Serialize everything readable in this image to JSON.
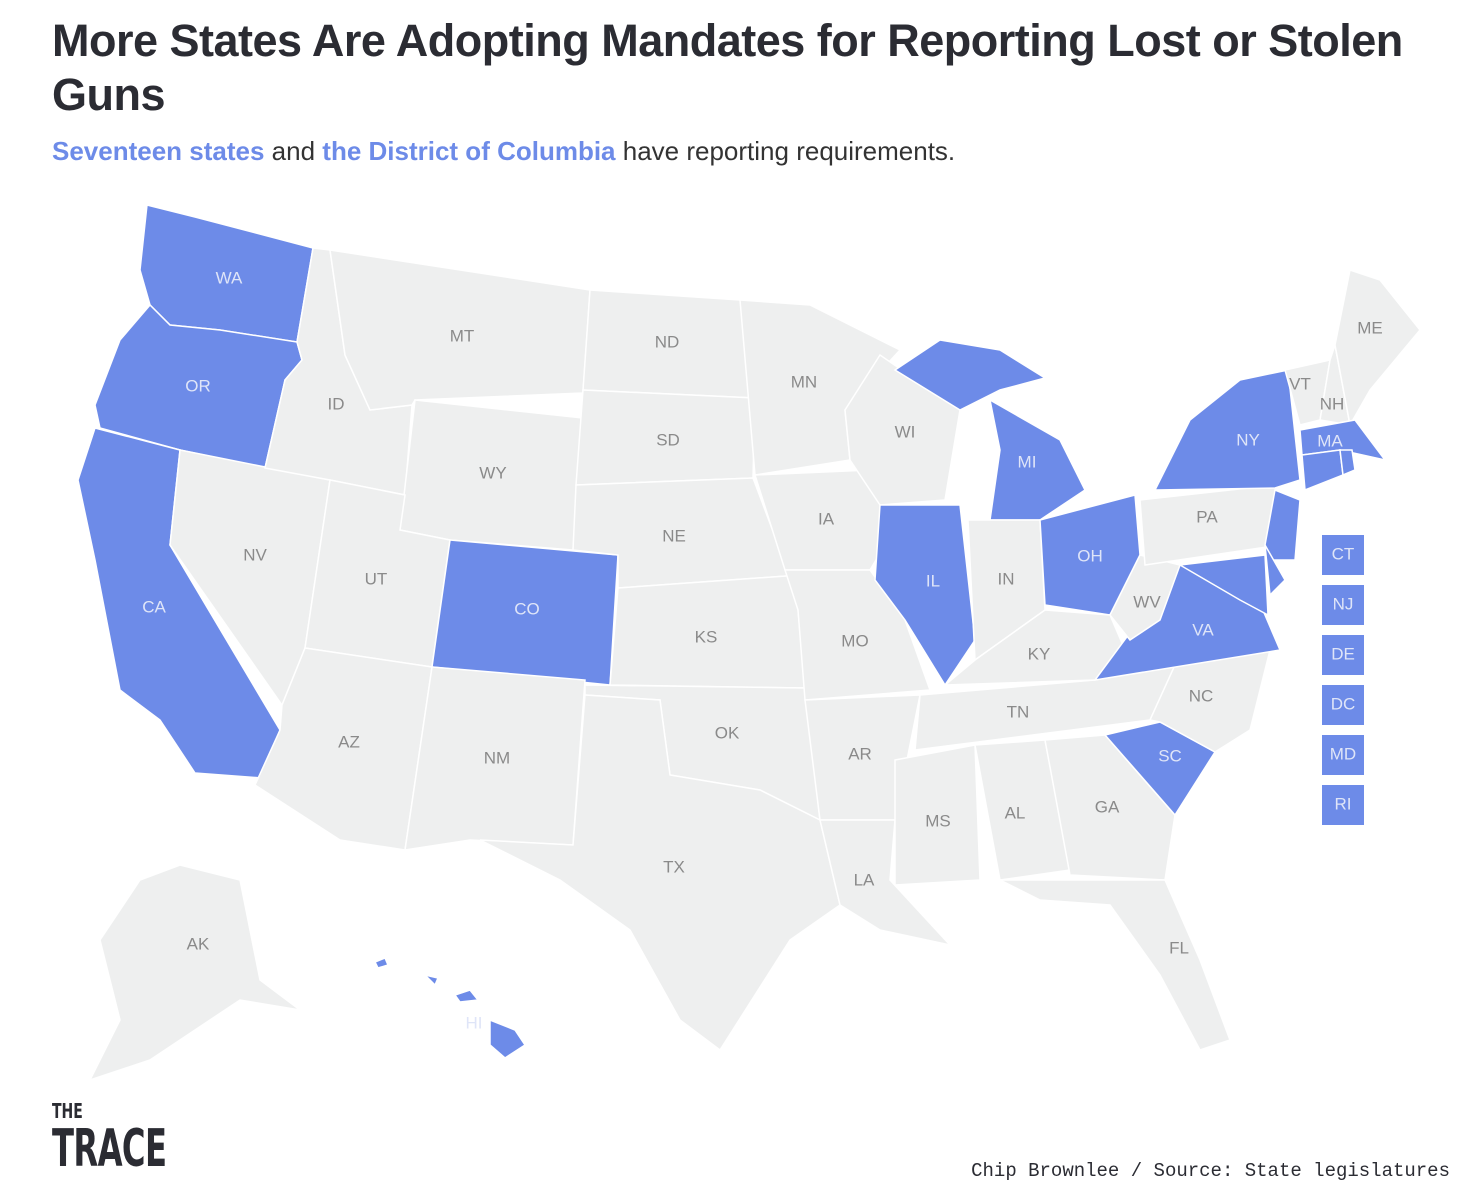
{
  "title": "More States Are Adopting Mandates for Reporting Lost or Stolen Guns",
  "subtitle": {
    "highlight1": "Seventeen states",
    "text1": " and ",
    "highlight2": "the District of Columbia",
    "text2": " have reporting requirements."
  },
  "colors": {
    "required": "#6d8be8",
    "none": "#eeefef",
    "label_required": "#dfe5f8",
    "label_none": "#8a8a8a"
  },
  "states": [
    {
      "code": "WA",
      "required": true
    },
    {
      "code": "OR",
      "required": true
    },
    {
      "code": "CA",
      "required": true
    },
    {
      "code": "NV",
      "required": false
    },
    {
      "code": "ID",
      "required": false
    },
    {
      "code": "MT",
      "required": false
    },
    {
      "code": "WY",
      "required": false
    },
    {
      "code": "UT",
      "required": false
    },
    {
      "code": "CO",
      "required": true
    },
    {
      "code": "AZ",
      "required": false
    },
    {
      "code": "NM",
      "required": false
    },
    {
      "code": "ND",
      "required": false
    },
    {
      "code": "SD",
      "required": false
    },
    {
      "code": "NE",
      "required": false
    },
    {
      "code": "KS",
      "required": false
    },
    {
      "code": "OK",
      "required": false
    },
    {
      "code": "TX",
      "required": false
    },
    {
      "code": "MN",
      "required": false
    },
    {
      "code": "IA",
      "required": false
    },
    {
      "code": "MO",
      "required": false
    },
    {
      "code": "AR",
      "required": false
    },
    {
      "code": "LA",
      "required": false
    },
    {
      "code": "WI",
      "required": false
    },
    {
      "code": "IL",
      "required": true
    },
    {
      "code": "MI",
      "required": true
    },
    {
      "code": "IN",
      "required": false
    },
    {
      "code": "OH",
      "required": true
    },
    {
      "code": "KY",
      "required": false
    },
    {
      "code": "TN",
      "required": false
    },
    {
      "code": "MS",
      "required": false
    },
    {
      "code": "AL",
      "required": false
    },
    {
      "code": "GA",
      "required": false
    },
    {
      "code": "FL",
      "required": false
    },
    {
      "code": "SC",
      "required": true
    },
    {
      "code": "NC",
      "required": false
    },
    {
      "code": "VA",
      "required": true
    },
    {
      "code": "WV",
      "required": false
    },
    {
      "code": "PA",
      "required": false
    },
    {
      "code": "NY",
      "required": true
    },
    {
      "code": "NJ",
      "required": true
    },
    {
      "code": "DE",
      "required": true
    },
    {
      "code": "MD",
      "required": true
    },
    {
      "code": "VT",
      "required": false
    },
    {
      "code": "NH",
      "required": false
    },
    {
      "code": "ME",
      "required": false
    },
    {
      "code": "MA",
      "required": true
    },
    {
      "code": "CT",
      "required": true
    },
    {
      "code": "RI",
      "required": true
    },
    {
      "code": "AK",
      "required": false
    },
    {
      "code": "HI",
      "required": true
    }
  ],
  "small_state_boxes": [
    "CT",
    "NJ",
    "DE",
    "DC",
    "MD",
    "RI"
  ],
  "logo": {
    "line1": "THE",
    "line2": "TRACE"
  },
  "credit": "Chip Brownlee / Source: State legislatures"
}
